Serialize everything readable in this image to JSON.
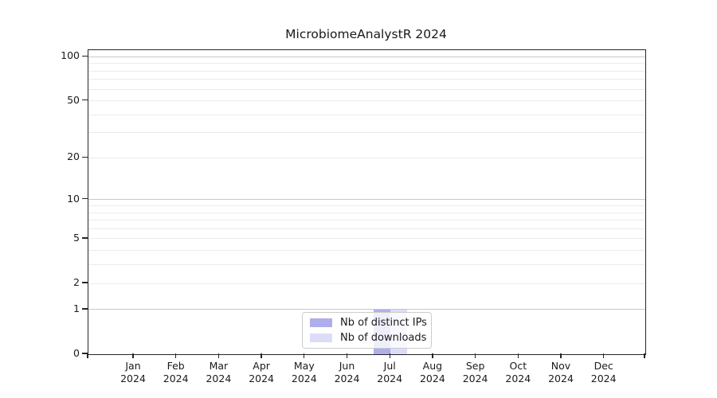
{
  "chart_data": {
    "type": "bar",
    "title": "MicrobiomeAnalystR 2024",
    "categories": [
      "Jan 2024",
      "Feb 2024",
      "Mar 2024",
      "Apr 2024",
      "May 2024",
      "Jun 2024",
      "Jul 2024",
      "Aug 2024",
      "Sep 2024",
      "Oct 2024",
      "Nov 2024",
      "Dec 2024"
    ],
    "series": [
      {
        "name": "Nb of distinct IPs",
        "color": "#aeaeec",
        "values": [
          0,
          0,
          0,
          0,
          0,
          0,
          1,
          0,
          0,
          0,
          0,
          0
        ]
      },
      {
        "name": "Nb of downloads",
        "color": "#dcdcf8",
        "values": [
          0,
          0,
          0,
          0,
          0,
          0,
          1,
          0,
          0,
          0,
          0,
          0
        ]
      }
    ],
    "xlabel": "",
    "ylabel": "",
    "yscale": "log1p",
    "ytick_labels": [
      0,
      1,
      2,
      5,
      10,
      20,
      50,
      100
    ],
    "major_grid_values": [
      1,
      10,
      100
    ],
    "minor_grid_values": [
      2,
      3,
      4,
      5,
      6,
      7,
      8,
      9,
      20,
      30,
      40,
      50,
      60,
      70,
      80,
      90
    ],
    "ylim": [
      0,
      110
    ],
    "grid": true,
    "legend_position": "lower center inside"
  },
  "colors": {
    "spine": "#262626",
    "major_grid": "#c8c8c8",
    "minor_grid": "#ebebeb",
    "text": "#1a1a1a",
    "legend_border": "#cccccc",
    "legend_background": "rgba(255,255,255,0.8)",
    "background": "#ffffff"
  }
}
